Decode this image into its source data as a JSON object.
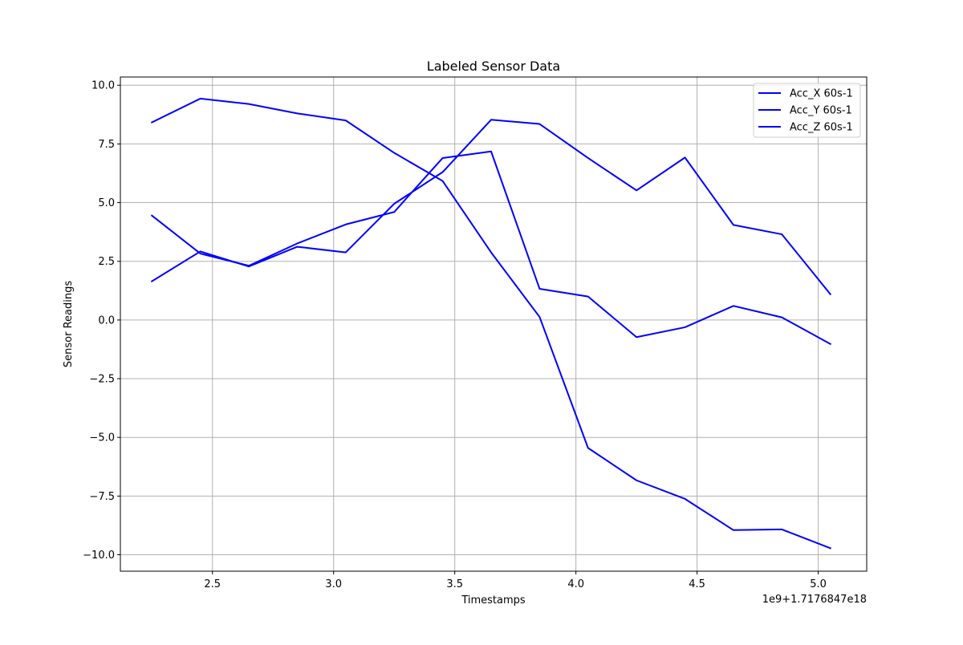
{
  "chart_data": {
    "type": "line",
    "title": "Labeled Sensor Data",
    "xlabel": "Timestamps",
    "ylabel": "Sensor Readings",
    "x_offset_label": "1e9+1.7176847e18",
    "xlim": [
      2.12,
      5.2
    ],
    "ylim": [
      -10.7,
      10.35
    ],
    "grid": true,
    "legend_position": "top-right",
    "x_ticks": [
      2.5,
      3.0,
      3.5,
      4.0,
      4.5,
      5.0
    ],
    "x_tick_labels": [
      "2.5",
      "3.0",
      "3.5",
      "4.0",
      "4.5",
      "5.0"
    ],
    "y_ticks": [
      10.0,
      7.5,
      5.0,
      2.5,
      0.0,
      -2.5,
      -5.0,
      -7.5,
      -10.0
    ],
    "y_tick_labels": [
      "10.0",
      "7.5",
      "5.0",
      "2.5",
      "0.0",
      "−2.5",
      "−5.0",
      "−7.5",
      "−10.0"
    ],
    "x": [
      2.25,
      2.45,
      2.65,
      2.85,
      3.05,
      3.25,
      3.45,
      3.65,
      3.85,
      4.05,
      4.25,
      4.45,
      4.65,
      4.85,
      5.05
    ],
    "series": [
      {
        "name": "Acc_X 60s-1",
        "color": "#0000ff",
        "values": [
          4.45,
          2.83,
          2.31,
          3.26,
          4.07,
          4.6,
          6.9,
          7.18,
          1.33,
          1.0,
          -0.73,
          -0.31,
          0.6,
          0.11,
          -1.02
        ]
      },
      {
        "name": "Acc_Y 60s-1",
        "color": "#0000ff",
        "values": [
          8.42,
          9.43,
          9.2,
          8.8,
          8.5,
          7.12,
          5.92,
          2.88,
          0.13,
          -5.45,
          -6.83,
          -7.62,
          -8.95,
          -8.92,
          -9.72
        ]
      },
      {
        "name": "Acc_Z 60s-1",
        "color": "#0000ff",
        "values": [
          1.65,
          2.92,
          2.28,
          3.12,
          2.88,
          4.95,
          6.3,
          8.53,
          8.35,
          6.9,
          5.52,
          6.92,
          4.05,
          3.65,
          1.1
        ]
      }
    ]
  }
}
